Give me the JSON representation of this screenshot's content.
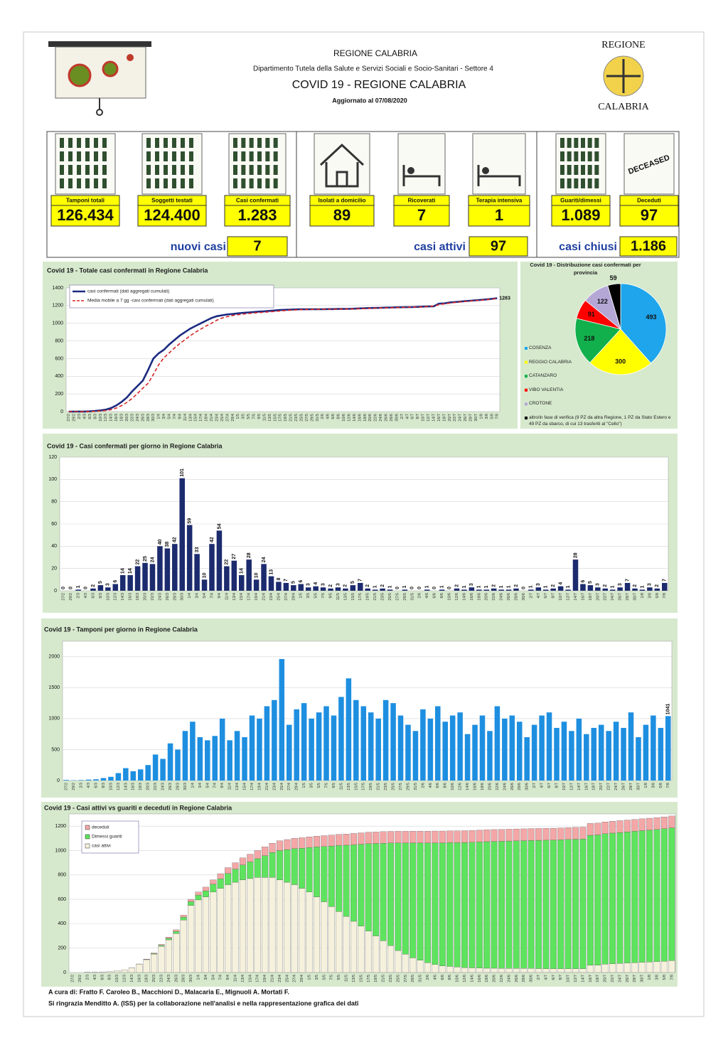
{
  "header": {
    "region": "REGIONE CALABRIA",
    "department": "Dipartimento Tutela della Salute e Servizi Sociali e Socio-Sanitari - Settore 4",
    "title": "COVID 19 - REGIONE CALABRIA",
    "updated": "Aggiornato al  07/08/2020",
    "logo_top": "REGIONE",
    "logo_bottom": "CALABRIA"
  },
  "kpis": {
    "tiles": [
      {
        "label": "Tamponi totali",
        "value": "126.434"
      },
      {
        "label": "Soggetti testati",
        "value": "124.400"
      },
      {
        "label": "Casi confermati",
        "value": "1.283"
      },
      {
        "label": "Isolati a domicilio",
        "value": "89"
      },
      {
        "label": "Ricoverati",
        "value": "7"
      },
      {
        "label": "Terapia intensiva",
        "value": "1"
      },
      {
        "label": "Guariti/dimessi",
        "value": "1.089"
      },
      {
        "label": "Deceduti",
        "value": "97",
        "stamp": "DECEASED"
      }
    ],
    "summary": [
      {
        "label": "nuovi casi",
        "value": "7"
      },
      {
        "label": "casi attivi",
        "value": "97"
      },
      {
        "label": "casi chiusi",
        "value": "1.186"
      }
    ]
  },
  "chart_data": [
    {
      "type": "line",
      "title": "Covid 19 - Totale casi confermati in Regione Calabria",
      "categories": [
        "27/2",
        "29/2",
        "2/3",
        "4/3",
        "6/3",
        "8/3",
        "10/3",
        "12/3",
        "14/3",
        "16/3",
        "18/3",
        "20/3",
        "22/3",
        "24/3",
        "26/3",
        "28/3",
        "30/3",
        "1/4",
        "3/4",
        "5/4",
        "7/4",
        "9/4",
        "11/4",
        "13/4",
        "15/4",
        "17/4",
        "19/4",
        "21/4",
        "23/4",
        "25/4",
        "27/4",
        "29/4",
        "1/5",
        "3/5",
        "5/5",
        "7/5",
        "9/5",
        "11/5",
        "13/5",
        "15/5",
        "17/5",
        "19/5",
        "21/5",
        "23/5",
        "25/5",
        "27/5",
        "29/5",
        "31/5",
        "2/6",
        "4/6",
        "6/6",
        "8/6",
        "10/6",
        "12/6",
        "14/6",
        "16/6",
        "18/6",
        "20/6",
        "22/6",
        "24/6",
        "26/6",
        "28/6",
        "30/6",
        "2/7",
        "4/7",
        "6/7",
        "8/7",
        "10/7",
        "12/7",
        "14/7",
        "16/7",
        "18/7",
        "20/7",
        "22/7",
        "24/7",
        "26/7",
        "28/7",
        "30/7",
        "1/8",
        "3/8",
        "5/8",
        "7/8"
      ],
      "series": [
        {
          "name": "casi confermati (dati aggregati cumulati)",
          "color": "#1b2a80",
          "values": [
            0,
            0,
            1,
            1,
            3,
            8,
            14,
            22,
            40,
            70,
            110,
            160,
            230,
            290,
            350,
            470,
            600,
            660,
            700,
            760,
            810,
            860,
            900,
            940,
            970,
            1000,
            1030,
            1060,
            1080,
            1090,
            1100,
            1105,
            1112,
            1118,
            1122,
            1127,
            1132,
            1135,
            1140,
            1145,
            1150,
            1152,
            1155,
            1157,
            1158,
            1158,
            1159,
            1159,
            1159,
            1160,
            1160,
            1162,
            1162,
            1163,
            1165,
            1168,
            1170,
            1172,
            1173,
            1175,
            1177,
            1178,
            1180,
            1181,
            1182,
            1183,
            1185,
            1188,
            1190,
            1192,
            1222,
            1225,
            1235,
            1240,
            1245,
            1250,
            1255,
            1260,
            1265,
            1270,
            1276,
            1283
          ]
        },
        {
          "name": "Media mobile a 7 gg -casi confermati (dati aggregati cumulati)",
          "color": "#d62728",
          "style": "dashed",
          "values": [
            0,
            0,
            0,
            1,
            1,
            3,
            7,
            12,
            22,
            40,
            68,
            105,
            150,
            205,
            265,
            320,
            420,
            530,
            610,
            665,
            720,
            770,
            815,
            860,
            900,
            935,
            970,
            1000,
            1035,
            1060,
            1075,
            1088,
            1097,
            1104,
            1110,
            1116,
            1121,
            1126,
            1130,
            1134,
            1139,
            1144,
            1148,
            1151,
            1154,
            1156,
            1157,
            1158,
            1158,
            1159,
            1159,
            1160,
            1161,
            1162,
            1163,
            1165,
            1167,
            1169,
            1171,
            1173,
            1175,
            1176,
            1178,
            1179,
            1181,
            1182,
            1184,
            1186,
            1188,
            1195,
            1210,
            1220,
            1228,
            1236,
            1242,
            1247,
            1252,
            1257,
            1262,
            1267,
            1273,
            1279
          ]
        }
      ],
      "ylim": [
        0,
        1400
      ],
      "yticks": [
        0,
        200,
        400,
        600,
        800,
        1000,
        1200,
        1400
      ],
      "grid": true,
      "data_labels": "last"
    },
    {
      "type": "pie",
      "title": "Covid 19 - Distribuzione casi confermati per provincia",
      "categories": [
        "COSENZA",
        "REGGIO CALABRIA",
        "CATANZARO",
        "VIBO VALENTIA",
        "CROTONE",
        "altro/in fase di verifica (9 PZ da altra Regione, 1 PZ da Stato Estero e 49 PZ da sbarco, di cui 13 trasferiti al \"Cello\")"
      ],
      "values": [
        493,
        300,
        218,
        91,
        122,
        59
      ],
      "colors": [
        "#1ea5ec",
        "#ffff00",
        "#12b04c",
        "#ff0000",
        "#b4a7d6",
        "#000000"
      ]
    },
    {
      "type": "bar",
      "title": "Covid 19 - Casi confermati per giorno in Regione Calabria",
      "categories": [
        "27/2",
        "29/2",
        "2/3",
        "4/3",
        "6/3",
        "8/3",
        "10/3",
        "12/3",
        "14/3",
        "16/3",
        "18/3",
        "20/3",
        "22/3",
        "24/3",
        "26/3",
        "28/3",
        "30/3",
        "1/4",
        "3/4",
        "5/4",
        "7/4",
        "9/4",
        "11/4",
        "13/4",
        "15/4",
        "17/4",
        "19/4",
        "21/4",
        "23/4",
        "25/4",
        "27/4",
        "29/4",
        "1/5",
        "3/5",
        "5/5",
        "7/5",
        "9/5",
        "11/5",
        "13/5",
        "15/5",
        "17/5",
        "19/5",
        "21/5",
        "23/5",
        "25/5",
        "27/5",
        "29/5",
        "31/5",
        "2/6",
        "4/6",
        "6/6",
        "8/6",
        "10/6",
        "12/6",
        "14/6",
        "16/6",
        "18/6",
        "20/6",
        "22/6",
        "24/6",
        "26/6",
        "28/6",
        "30/6",
        "2/7",
        "4/7",
        "6/7",
        "8/7",
        "10/7",
        "12/7",
        "14/7",
        "16/7",
        "18/7",
        "20/7",
        "22/7",
        "24/7",
        "26/7",
        "28/7",
        "30/7",
        "1/8",
        "3/8",
        "5/8",
        "7/8"
      ],
      "values": [
        0,
        0,
        1,
        0,
        2,
        5,
        3,
        6,
        14,
        14,
        22,
        25,
        24,
        40,
        38,
        42,
        101,
        59,
        33,
        10,
        42,
        54,
        22,
        27,
        14,
        28,
        10,
        24,
        13,
        8,
        7,
        5,
        6,
        3,
        4,
        3,
        2,
        3,
        2,
        5,
        7,
        2,
        1,
        2,
        1,
        0,
        1,
        0,
        0,
        1,
        0,
        1,
        0,
        2,
        1,
        3,
        1,
        1,
        2,
        1,
        1,
        2,
        0,
        1,
        3,
        1,
        2,
        4,
        1,
        28,
        6,
        5,
        3,
        2,
        1,
        3,
        7,
        2,
        1,
        3,
        2,
        7
      ],
      "color": "#1c2b6e",
      "ylim": [
        0,
        120
      ],
      "yticks": [
        0,
        20,
        40,
        60,
        80,
        100,
        120
      ],
      "grid": true,
      "data_labels": "all"
    },
    {
      "type": "bar",
      "title": "Covid 19 - Tamponi per giorno in Regione Calabria",
      "categories": [
        "27/2",
        "29/2",
        "2/3",
        "4/3",
        "6/3",
        "8/3",
        "10/3",
        "12/3",
        "14/3",
        "16/3",
        "18/3",
        "20/3",
        "22/3",
        "24/3",
        "26/3",
        "28/3",
        "30/3",
        "1/4",
        "3/4",
        "5/4",
        "7/4",
        "9/4",
        "11/4",
        "13/4",
        "15/4",
        "17/4",
        "19/4",
        "21/4",
        "23/4",
        "25/4",
        "27/4",
        "29/4",
        "1/5",
        "3/5",
        "5/5",
        "7/5",
        "9/5",
        "11/5",
        "13/5",
        "15/5",
        "17/5",
        "19/5",
        "21/5",
        "23/5",
        "25/5",
        "27/5",
        "29/5",
        "31/5",
        "2/6",
        "4/6",
        "6/6",
        "8/6",
        "10/6",
        "12/6",
        "14/6",
        "16/6",
        "18/6",
        "20/6",
        "22/6",
        "24/6",
        "26/6",
        "28/6",
        "30/6",
        "2/7",
        "4/7",
        "6/7",
        "8/7",
        "10/7",
        "12/7",
        "14/7",
        "16/7",
        "18/7",
        "20/7",
        "22/7",
        "24/7",
        "26/7",
        "28/7",
        "30/7",
        "1/8",
        "3/8",
        "5/8",
        "7/8"
      ],
      "values": [
        10,
        5,
        8,
        15,
        20,
        40,
        60,
        120,
        200,
        150,
        180,
        250,
        420,
        350,
        600,
        500,
        800,
        950,
        700,
        650,
        720,
        1000,
        650,
        800,
        700,
        1050,
        1000,
        1200,
        1300,
        1962,
        900,
        1150,
        1250,
        1000,
        1100,
        1200,
        1050,
        1350,
        1650,
        1300,
        1200,
        1100,
        1000,
        1300,
        1250,
        1050,
        900,
        800,
        1150,
        1000,
        1200,
        950,
        1050,
        1100,
        750,
        900,
        1050,
        800,
        1200,
        1000,
        1050,
        950,
        700,
        900,
        1050,
        1100,
        850,
        950,
        800,
        1000,
        750,
        850,
        900,
        800,
        950,
        850,
        1100,
        700,
        900,
        1050,
        850,
        1041
      ],
      "color": "#1e8fe0",
      "ylim": [
        0,
        2250
      ],
      "yticks": [
        0,
        500,
        1000,
        1500,
        2000
      ],
      "grid": true,
      "data_labels": "last"
    },
    {
      "type": "stacked_bar",
      "title": "Covid 19 - Casi attivi vs guariti e deceduti in Regione Calabria",
      "categories": [
        "27/2",
        "29/2",
        "2/3",
        "4/3",
        "6/3",
        "8/3",
        "10/3",
        "12/3",
        "14/3",
        "16/3",
        "18/3",
        "20/3",
        "22/3",
        "24/3",
        "26/3",
        "28/3",
        "30/3",
        "1/4",
        "3/4",
        "5/4",
        "7/4",
        "9/4",
        "11/4",
        "13/4",
        "15/4",
        "17/4",
        "19/4",
        "21/4",
        "23/4",
        "25/4",
        "27/4",
        "29/4",
        "1/5",
        "3/5",
        "5/5",
        "7/5",
        "9/5",
        "11/5",
        "13/5",
        "15/5",
        "17/5",
        "19/5",
        "21/5",
        "23/5",
        "25/5",
        "27/5",
        "29/5",
        "31/5",
        "2/6",
        "4/6",
        "6/6",
        "8/6",
        "10/6",
        "12/6",
        "14/6",
        "16/6",
        "18/6",
        "20/6",
        "22/6",
        "24/6",
        "26/6",
        "28/6",
        "30/6",
        "2/7",
        "4/7",
        "6/7",
        "8/7",
        "10/7",
        "12/7",
        "14/7",
        "16/7",
        "18/7",
        "20/7",
        "22/7",
        "24/7",
        "26/7",
        "28/7",
        "30/7",
        "1/8",
        "3/8",
        "5/8",
        "7/8"
      ],
      "series": [
        {
          "name": "deceduti",
          "color": "#f4a7a7",
          "values": [
            0,
            0,
            0,
            0,
            0,
            0,
            0,
            0,
            1,
            2,
            3,
            5,
            7,
            10,
            13,
            16,
            20,
            25,
            30,
            36,
            42,
            48,
            52,
            58,
            63,
            67,
            72,
            76,
            80,
            82,
            84,
            86,
            87,
            88,
            89,
            90,
            90,
            91,
            92,
            93,
            94,
            94,
            95,
            95,
            96,
            96,
            96,
            96,
            96,
            97,
            97,
            97,
            97,
            97,
            97,
            97,
            97,
            97,
            97,
            97,
            97,
            97,
            97,
            97,
            97,
            97,
            97,
            97,
            97,
            97,
            97,
            97,
            97,
            97,
            97,
            97,
            97,
            97,
            97,
            97,
            97,
            97
          ]
        },
        {
          "name": "Dimessi guariti",
          "color": "#5ee35e",
          "values": [
            0,
            0,
            0,
            0,
            0,
            0,
            0,
            0,
            0,
            0,
            2,
            5,
            8,
            12,
            17,
            24,
            30,
            40,
            50,
            64,
            78,
            92,
            108,
            122,
            137,
            153,
            178,
            204,
            240,
            268,
            296,
            329,
            365,
            410,
            453,
            497,
            542,
            584,
            628,
            672,
            716,
            758,
            800,
            842,
            882,
            912,
            943,
            963,
            983,
            998,
            1008,
            1015,
            1020,
            1026,
            1030,
            1035,
            1038,
            1040,
            1042,
            1044,
            1046,
            1048,
            1050,
            1052,
            1054,
            1056,
            1058,
            1060,
            1062,
            1064,
            1066,
            1068,
            1070,
            1072,
            1074,
            1076,
            1078,
            1080,
            1082,
            1084,
            1087,
            1089
          ]
        },
        {
          "name": "casi attivi",
          "color": "#f5f1dc",
          "values": [
            0,
            0,
            1,
            1,
            3,
            8,
            14,
            22,
            39,
            68,
            105,
            150,
            215,
            268,
            320,
            430,
            550,
            595,
            620,
            660,
            690,
            720,
            740,
            760,
            770,
            780,
            780,
            780,
            760,
            740,
            720,
            690,
            660,
            620,
            580,
            540,
            500,
            460,
            420,
            380,
            340,
            300,
            260,
            220,
            180,
            150,
            120,
            100,
            80,
            65,
            55,
            50,
            45,
            40,
            38,
            36,
            35,
            35,
            34,
            34,
            34,
            33,
            33,
            32,
            31,
            30,
            30,
            31,
            31,
            31,
            59,
            60,
            68,
            71,
            74,
            77,
            80,
            83,
            86,
            89,
            92,
            97
          ]
        }
      ],
      "ylim": [
        0,
        1300
      ],
      "yticks": [
        0,
        200,
        400,
        600,
        800,
        1000,
        1200
      ],
      "grid": true
    }
  ],
  "footer": {
    "credits": "A cura di: Fratto F. Caroleo B., Macchioni D., Malacaria E., Mignuoli A. Mortati F.",
    "thanks": "Si ringrazia Menditto A. (ISS) per la collaborazione nell'analisi e nella rappresentazione grafica dei dati"
  }
}
